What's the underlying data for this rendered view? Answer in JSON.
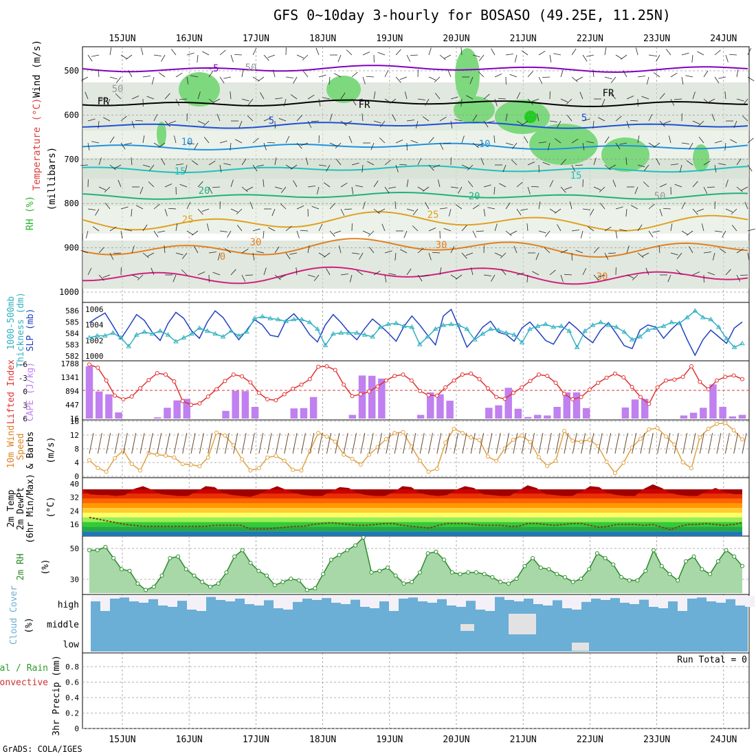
{
  "title": "GFS 0~10day 3-hourly for BOSASO (49.25E, 11.25N)",
  "footer": "GrADS: COLA/IGES",
  "dates": [
    "15JUN",
    "16JUN",
    "17JUN",
    "18JUN",
    "19JUN",
    "20JUN",
    "21JUN",
    "22JUN",
    "23JUN",
    "24JUN"
  ],
  "colors": {
    "rh_green": "#2db52d",
    "wind": "#6b4a2b",
    "temp_fill": "#e03000",
    "dew": "#c88020",
    "rh2m": "#4caf50",
    "cloud": "#6baed6",
    "cape": "#c080f0",
    "li": "#e03030",
    "slp": "#2040c0",
    "thick": "#30b0c0"
  },
  "panels": {
    "upper": {
      "labels": {
        "wind": "Wind (m/s)",
        "temp": "Temperature (°C)",
        "rh": "RH (%)",
        "mb": "(millibars)"
      },
      "yticks": [
        "500",
        "600",
        "700",
        "800",
        "900",
        "1000"
      ],
      "contour_labels": [
        "-5",
        "FR",
        "FR",
        "FR",
        "5",
        "5",
        "10",
        "10",
        "15",
        "15",
        "20",
        "20",
        "25",
        "25",
        "30",
        "30",
        "30",
        "0",
        "50",
        "50",
        "50"
      ]
    },
    "thick": {
      "labels": {
        "a": "1000-500mb",
        "b": "Thickness (dm)",
        "c": "SLP (mb)"
      },
      "left_ticks": [
        "586",
        "585",
        "584",
        "583",
        "582"
      ],
      "right_ticks": [
        "1006",
        "1004",
        "1002",
        "1000"
      ]
    },
    "cape": {
      "labels": {
        "a": "Lifted Index",
        "b": "CAPE (J/kg)"
      },
      "left_ticks": [
        "-6",
        "-3",
        "0",
        "3",
        "6"
      ],
      "right_ticks": [
        "1788",
        "1341",
        "894",
        "447",
        "16"
      ]
    },
    "wind10": {
      "labels": {
        "a": "10m Wind",
        "b": "Speed",
        "c": "& Barbs",
        "d": "(m/s)"
      },
      "ticks": [
        "16",
        "12",
        "8",
        "4",
        "0"
      ]
    },
    "temp2m": {
      "labels": {
        "a": "2m Temp",
        "b": "2m DewPt",
        "c": "(6hr Min/Max)",
        "d": "(°C)"
      },
      "ticks": [
        "40",
        "32",
        "24",
        "16"
      ]
    },
    "rh2m": {
      "labels": {
        "a": "2m RH",
        "b": "(%)"
      },
      "ticks": [
        "50",
        "30"
      ]
    },
    "cloud": {
      "labels": {
        "a": "Cloud Cover",
        "b": "(%)"
      },
      "ticks": [
        "high",
        "middle",
        "low"
      ]
    },
    "precip": {
      "labels": {
        "a": "Total / Rain",
        "b": "Convective",
        "c": "3hr Precip (mm)"
      },
      "ticks": [
        "0.8",
        "0.6",
        "0.4",
        "0.2",
        "0"
      ],
      "run_total": "Run Total = 0"
    }
  },
  "chart_data": [
    {
      "type": "line",
      "title": "SLP (mb)",
      "ylim": [
        1000,
        1006.5
      ],
      "series": [
        {
          "name": "SLP",
          "values": [
            1004.5,
            1005.2,
            1005.8,
            1004.1,
            1002.3,
            1003.9,
            1005.6,
            1004.8,
            1003.2,
            1002.1,
            1004.4,
            1005.9,
            1005.1,
            1003.4,
            1002.4,
            1004.6,
            1006.1,
            1005.2,
            1003.6,
            1002.2,
            1003.5,
            1004.9,
            1004.2,
            1002.8,
            1002.6,
            1004.8,
            1005.7,
            1004.5,
            1002.9,
            1001.9,
            1004.2,
            1005.6,
            1004.5,
            1003.2,
            1002.2,
            1003.7,
            1005.0,
            1004.1,
            1003.1,
            1002.0,
            1004.0,
            1005.4,
            1004.2,
            1002.8,
            1001.5,
            1005.4,
            1006.3,
            1003.8,
            1001.2,
            1002.4,
            1003.9,
            1004.7,
            1003.2,
            1002.9,
            1002.0,
            1003.8,
            1004.6,
            1003.4,
            1002.1,
            1001.6,
            1003.3,
            1004.6,
            1003.7,
            1002.6,
            1001.8,
            1003.5,
            1004.5,
            1003.0,
            1001.4,
            1001.0,
            1003.5,
            1004.2,
            1003.9,
            1002.4,
            1003.6,
            1004.6,
            1002.2,
            1000.1,
            1002.2,
            1003.5,
            1002.6,
            1001.7,
            1003.8,
            1004.6
          ]
        }
      ]
    },
    {
      "type": "line",
      "title": "1000-500mb Thickness (dm)",
      "ylim": [
        581.5,
        586.5
      ],
      "series": [
        {
          "name": "Thickness",
          "values": [
            583.4,
            583.6,
            583.6,
            583.9,
            583.4,
            582.5,
            583.7,
            584.0,
            583.8,
            584.1,
            583.7,
            583.0,
            583.4,
            583.8,
            584.4,
            584.1,
            583.8,
            583.5,
            584.1,
            583.6,
            584.0,
            585.4,
            585.6,
            585.4,
            585.3,
            585.1,
            585.3,
            585.3,
            585.0,
            584.3,
            582.6,
            583.8,
            583.9,
            583.9,
            583.9,
            583.7,
            583.5,
            584.5,
            584.8,
            584.9,
            584.6,
            584.5,
            582.7,
            583.5,
            584.3,
            584.7,
            584.8,
            584.7,
            584.3,
            583.2,
            583.8,
            584.3,
            584.2,
            583.9,
            583.7,
            582.9,
            584.3,
            584.6,
            584.8,
            584.5,
            584.6,
            584.1,
            582.4,
            584.1,
            584.7,
            585.0,
            584.7,
            584.5,
            584.0,
            583.2,
            583.5,
            584.2,
            584.4,
            584.6,
            585.0,
            584.9,
            585.5,
            586.2,
            585.5,
            585.3,
            584.5,
            583.3,
            582.4,
            582.8
          ]
        }
      ]
    },
    {
      "type": "bar",
      "title": "CAPE (J/kg)",
      "ylim": [
        0,
        1788
      ],
      "values": [
        1700,
        880,
        790,
        200,
        0,
        0,
        0,
        40,
        350,
        590,
        640,
        0,
        0,
        0,
        250,
        900,
        890,
        380,
        0,
        0,
        0,
        330,
        340,
        700,
        0,
        0,
        0,
        120,
        1400,
        1390,
        1300,
        0,
        0,
        0,
        120,
        850,
        790,
        580,
        0,
        0,
        0,
        350,
        430,
        1000,
        320,
        50,
        120,
        100,
        380,
        850,
        850,
        340,
        0,
        0,
        0,
        360,
        620,
        640,
        0,
        0,
        0,
        100,
        190,
        350,
        1110,
        380,
        70,
        120
      ]
    },
    {
      "type": "line",
      "title": "Lifted Index",
      "ylim": [
        -6,
        6
      ],
      "series": [
        {
          "name": "Lifted Index",
          "values": [
            -5.8,
            -5.1,
            -2.3,
            1.0,
            1.8,
            1.2,
            -0.6,
            -2.4,
            -3.9,
            -3.6,
            -2.1,
            2.2,
            3.0,
            2.7,
            1.2,
            -0.4,
            -2.2,
            -3.6,
            -3.2,
            -1.9,
            0.4,
            1.8,
            2.0,
            0.7,
            -0.5,
            -1.4,
            -2.6,
            -5.3,
            -5.4,
            -4.6,
            -1.4,
            1.1,
            0.7,
            0.1,
            -1.0,
            -2.3,
            -3.3,
            -3.6,
            -2.3,
            0.0,
            0.9,
            1.0,
            -0.8,
            -2.3,
            -3.6,
            -3.8,
            -2.6,
            -0.6,
            1.3,
            1.7,
            0.4,
            -0.8,
            -2.2,
            -3.6,
            -3.3,
            -1.8,
            0.6,
            1.8,
            1.3,
            -0.3,
            -1.8,
            -2.9,
            -3.8,
            -3.0,
            -0.9,
            1.3,
            2.8,
            -0.8,
            -2.3,
            -2.5,
            -3.1,
            -5.4,
            -2.0,
            -0.4,
            -2.3,
            -3.1,
            -3.4,
            -2.6
          ]
        }
      ]
    },
    {
      "type": "line",
      "title": "10m Wind Speed",
      "ylim": [
        0,
        17
      ],
      "series": [
        {
          "name": "Speed",
          "values": [
            5.0,
            2.6,
            1.4,
            5.6,
            8.0,
            3.8,
            1.8,
            7.2,
            6.7,
            6.4,
            5.8,
            3.8,
            3.6,
            3.1,
            5.8,
            13.5,
            12.6,
            9.6,
            5.2,
            1.8,
            2.5,
            5.8,
            6.3,
            4.8,
            2.0,
            1.8,
            7.8,
            13.4,
            12.3,
            10.7,
            6.7,
            5.4,
            3.6,
            6.7,
            9.0,
            11.5,
            13.4,
            13.6,
            9.2,
            4.8,
            1.4,
            2.3,
            10.4,
            14.7,
            13.4,
            12.0,
            11.2,
            6.1,
            4.7,
            8.6,
            11.3,
            12.6,
            10.6,
            5.9,
            3.2,
            4.8,
            14.0,
            11.0,
            10.7,
            11.3,
            9.3,
            4.5,
            1.0,
            4.2,
            8.9,
            11.6,
            14.5,
            14.9,
            12.3,
            9.8,
            4.3,
            2.5,
            12.0,
            14.7,
            16.2,
            16.5,
            14.2,
            11.4
          ]
        }
      ]
    },
    {
      "type": "area",
      "title": "2m Temp",
      "ylim": [
        10,
        42
      ],
      "series": [
        {
          "name": "Temp",
          "values": [
            33.5,
            33.0,
            33.0,
            32.5,
            33.0,
            36.5,
            38.0,
            36.0,
            33.5,
            33.0,
            32.5,
            32.5,
            35.0,
            38.0,
            37.5,
            34.0,
            33.0,
            32.5,
            32.0,
            33.5,
            36.0,
            38.0,
            36.0,
            34.0,
            33.0,
            32.5,
            32.5,
            35.0,
            37.5,
            37.0,
            34.0,
            33.0,
            32.5,
            32.5,
            34.5,
            38.0,
            37.5,
            34.0,
            33.0,
            32.5,
            33.0,
            36.0,
            38.0,
            37.0,
            33.5,
            33.0,
            32.5,
            32.5,
            35.5,
            38.5,
            37.0,
            33.5,
            33.0,
            32.5,
            32.5,
            35.0,
            38.0,
            37.5,
            34.0,
            33.0,
            32.5,
            32.5,
            36.5,
            39.0,
            37.0,
            34.0,
            33.0,
            32.5,
            32.5,
            35.0,
            37.0,
            35.0,
            33.5,
            33.5
          ]
        },
        {
          "name": "DewPt",
          "values": [
            20.5,
            19.5,
            18.5,
            17.5,
            16.5,
            16.0,
            15.5,
            15.5,
            15.5,
            15.5,
            15.5,
            15.5,
            15.5,
            15.5,
            16.0,
            16.0,
            16.0,
            16.0,
            14.0,
            14.0,
            14.0,
            14.5,
            15.0,
            15.5,
            15.5,
            16.5,
            17.0,
            17.5,
            17.0,
            16.5,
            16.0,
            16.0,
            16.5,
            17.0,
            17.0,
            16.0,
            15.5,
            15.0,
            14.5,
            16.0,
            17.0,
            17.0,
            17.0,
            16.5,
            16.0,
            16.0,
            16.0,
            15.5,
            15.5,
            17.0,
            17.0,
            16.5,
            16.0,
            16.5,
            17.0,
            17.0,
            16.0,
            15.0,
            15.5,
            16.5,
            16.5,
            16.5,
            16.0,
            16.5,
            15.0,
            13.5,
            15.5,
            16.5,
            16.5,
            17.0,
            16.5,
            16.0,
            16.5,
            17.5
          ]
        }
      ]
    },
    {
      "type": "area",
      "title": "2m RH",
      "ylim": [
        20,
        55
      ],
      "series": [
        {
          "name": "2m RH",
          "values": [
            47,
            47,
            49,
            42,
            35,
            34,
            26,
            22,
            24,
            31,
            42,
            43,
            35,
            31,
            27,
            24,
            26,
            33,
            43,
            47,
            39,
            34,
            31,
            25,
            27,
            29,
            28,
            22,
            23,
            32,
            41,
            44,
            47,
            50,
            55,
            33,
            34,
            36,
            31,
            26,
            27,
            33,
            45,
            46,
            41,
            33,
            32,
            33,
            33,
            32,
            30,
            27,
            26,
            29,
            37,
            42,
            36,
            35,
            32,
            30,
            27,
            29,
            35,
            45,
            42,
            38,
            30,
            28,
            28,
            34,
            47,
            37,
            32,
            28,
            40,
            43,
            35,
            32,
            40,
            47,
            43,
            37
          ]
        }
      ]
    },
    {
      "type": "table",
      "title": "Cloud Cover",
      "rows": [
        {
          "layer": "high"
        },
        {
          "layer": "middle"
        },
        {
          "layer": "low"
        }
      ]
    },
    {
      "type": "bar",
      "title": "3hr Precip (mm)",
      "ylim": [
        0,
        1
      ],
      "values": [
        0,
        0,
        0,
        0,
        0,
        0,
        0,
        0,
        0,
        0
      ]
    }
  ]
}
